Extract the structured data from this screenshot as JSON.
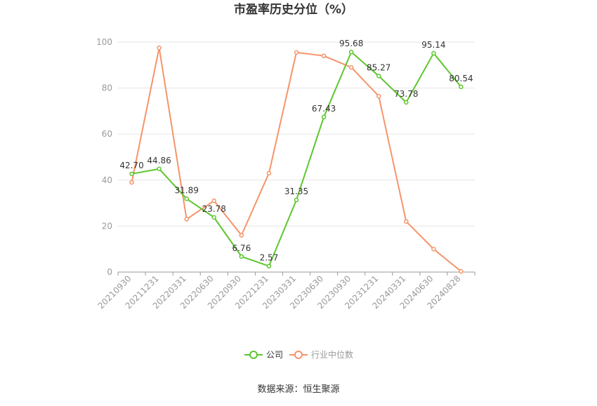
{
  "chart_data": {
    "type": "line",
    "title": "市盈率历史分位（%）",
    "categories": [
      "20210930",
      "20211231",
      "20220331",
      "20220630",
      "20220930",
      "20221231",
      "20230331",
      "20230630",
      "20230930",
      "20231231",
      "20240331",
      "20240630",
      "20240828"
    ],
    "ylim": [
      0,
      100
    ],
    "yticks": [
      0,
      20,
      40,
      60,
      80,
      100
    ],
    "grid": true,
    "legend_position": "bottom",
    "series": [
      {
        "name": "公司",
        "color": "#5dc62d",
        "labels_shown": true,
        "values": [
          42.7,
          44.86,
          31.89,
          23.78,
          6.76,
          2.57,
          31.35,
          67.43,
          95.68,
          85.27,
          73.78,
          95.14,
          80.54
        ],
        "value_labels": [
          "42.70",
          "44.86",
          "31.89",
          "23.78",
          "6.76",
          "2.57",
          "31.35",
          "67.43",
          "95.68",
          "85.27",
          "73.78",
          "95.14",
          "80.54"
        ]
      },
      {
        "name": "行业中位数",
        "color": "#f5946a",
        "labels_shown": false,
        "values": [
          39,
          97.5,
          23,
          31,
          16,
          43,
          95.5,
          94,
          89,
          76.5,
          22,
          10,
          0.3
        ]
      }
    ]
  },
  "source_text": "数据来源：恒生聚源"
}
